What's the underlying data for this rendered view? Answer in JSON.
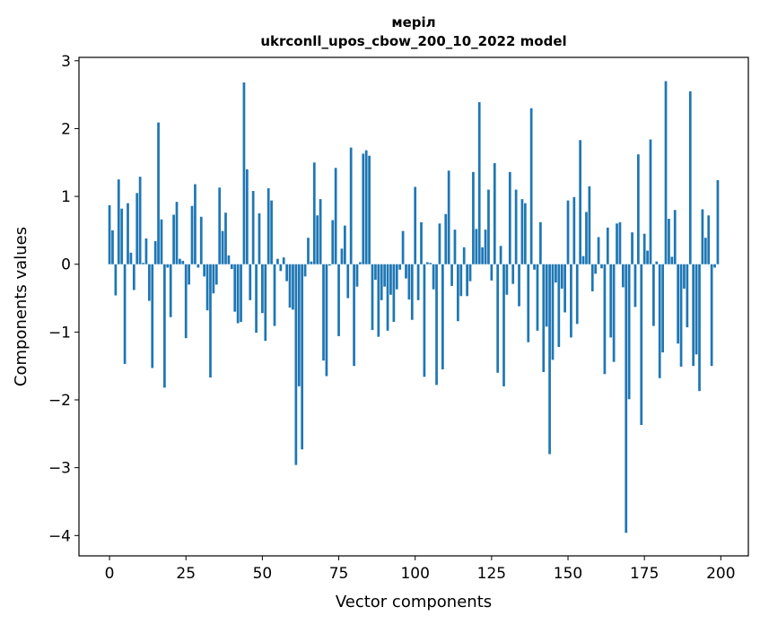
{
  "chart_data": {
    "type": "bar",
    "title": "меріл",
    "subtitle": "ukrconll_upos_cbow_200_10_2022 model",
    "xlabel": "Vector components",
    "ylabel": "Components values",
    "xlim": [
      -10,
      209
    ],
    "ylim": [
      -4.3,
      3.05
    ],
    "x_ticks": [
      0,
      25,
      50,
      75,
      100,
      125,
      150,
      175,
      200
    ],
    "y_ticks": [
      3,
      2,
      1,
      0,
      -1,
      -2,
      -3,
      -4
    ],
    "x_tick_labels": [
      "0",
      "25",
      "50",
      "75",
      "100",
      "125",
      "150",
      "175",
      "200"
    ],
    "y_tick_labels": [
      "3",
      "2",
      "1",
      "0",
      "−1",
      "−2",
      "−3",
      "−4"
    ],
    "bar_color": "#1f77b4",
    "grid": false,
    "legend": "none",
    "x": [
      0,
      1,
      2,
      3,
      4,
      5,
      6,
      7,
      8,
      9,
      10,
      11,
      12,
      13,
      14,
      15,
      16,
      17,
      18,
      19,
      20,
      21,
      22,
      23,
      24,
      25,
      26,
      27,
      28,
      29,
      30,
      31,
      32,
      33,
      34,
      35,
      36,
      37,
      38,
      39,
      40,
      41,
      42,
      43,
      44,
      45,
      46,
      47,
      48,
      49,
      50,
      51,
      52,
      53,
      54,
      55,
      56,
      57,
      58,
      59,
      60,
      61,
      62,
      63,
      64,
      65,
      66,
      67,
      68,
      69,
      70,
      71,
      72,
      73,
      74,
      75,
      76,
      77,
      78,
      79,
      80,
      81,
      82,
      83,
      84,
      85,
      86,
      87,
      88,
      89,
      90,
      91,
      92,
      93,
      94,
      95,
      96,
      97,
      98,
      99,
      100,
      101,
      102,
      103,
      104,
      105,
      106,
      107,
      108,
      109,
      110,
      111,
      112,
      113,
      114,
      115,
      116,
      117,
      118,
      119,
      120,
      121,
      122,
      123,
      124,
      125,
      126,
      127,
      128,
      129,
      130,
      131,
      132,
      133,
      134,
      135,
      136,
      137,
      138,
      139,
      140,
      141,
      142,
      143,
      144,
      145,
      146,
      147,
      148,
      149,
      150,
      151,
      152,
      153,
      154,
      155,
      156,
      157,
      158,
      159,
      160,
      161,
      162,
      163,
      164,
      165,
      166,
      167,
      168,
      169,
      170,
      171,
      172,
      173,
      174,
      175,
      176,
      177,
      178,
      179,
      180,
      181,
      182,
      183,
      184,
      185,
      186,
      187,
      188,
      189,
      190,
      191,
      192,
      193,
      194,
      195,
      196,
      197,
      198,
      199
    ],
    "values": [
      0.87,
      0.5,
      -0.46,
      1.25,
      0.82,
      -1.47,
      0.9,
      0.17,
      -0.38,
      1.05,
      1.29,
      0.02,
      0.38,
      -0.54,
      -1.53,
      0.34,
      2.09,
      0.66,
      -1.82,
      -0.05,
      -0.78,
      0.73,
      0.92,
      0.08,
      0.05,
      -1.09,
      -0.3,
      0.86,
      1.18,
      -0.05,
      0.7,
      -0.18,
      -0.68,
      -1.67,
      -0.43,
      -0.3,
      1.13,
      0.49,
      0.76,
      0.13,
      -0.07,
      -0.7,
      -0.87,
      -0.85,
      2.68,
      1.4,
      -0.53,
      1.08,
      -1.01,
      0.75,
      -0.72,
      -1.13,
      1.12,
      0.94,
      -0.91,
      0.08,
      -0.1,
      0.1,
      -0.25,
      -0.64,
      -0.67,
      -2.96,
      -1.8,
      -2.73,
      -0.18,
      0.39,
      0.04,
      1.5,
      0.72,
      0.96,
      -1.42,
      -1.65,
      -0.02,
      0.65,
      1.42,
      -1.06,
      0.23,
      0.57,
      -0.5,
      1.72,
      -1.5,
      -0.33,
      0.03,
      1.63,
      1.68,
      1.6,
      -0.97,
      -0.23,
      -1.07,
      -0.53,
      -0.33,
      -0.98,
      -0.45,
      -0.85,
      -0.37,
      -0.08,
      0.49,
      -0.21,
      -0.52,
      -0.82,
      1.14,
      -0.53,
      0.62,
      -1.66,
      0.03,
      0.02,
      -0.37,
      -1.78,
      0.6,
      -1.55,
      0.74,
      1.38,
      -0.32,
      0.51,
      -0.84,
      -0.47,
      0.25,
      -0.47,
      -0.25,
      1.36,
      0.52,
      2.39,
      0.25,
      0.51,
      1.1,
      -0.24,
      1.49,
      -1.6,
      0.27,
      -1.8,
      -0.45,
      1.36,
      -0.29,
      1.1,
      -0.62,
      0.96,
      0.9,
      -1.15,
      2.3,
      -0.08,
      -0.98,
      0.62,
      -1.59,
      -0.92,
      -2.8,
      -1.41,
      -0.27,
      -1.22,
      -0.36,
      -0.71,
      0.94,
      -1.08,
      0.99,
      -0.88,
      1.83,
      0.12,
      0.77,
      1.15,
      -0.4,
      -0.14,
      0.4,
      -0.06,
      -1.62,
      0.54,
      -1.08,
      -1.44,
      0.6,
      0.62,
      -0.34,
      -3.96,
      -1.99,
      0.47,
      -0.63,
      1.62,
      -2.37,
      0.45,
      0.2,
      1.84,
      -0.91,
      0.04,
      -1.68,
      -1.3,
      2.7,
      0.67,
      0.11,
      0.8,
      -1.17,
      -1.51,
      -0.36,
      -0.93,
      2.55,
      -1.5,
      -1.33,
      -1.87,
      0.81,
      0.39,
      0.72,
      -1.5,
      -0.05,
      1.24
    ]
  }
}
